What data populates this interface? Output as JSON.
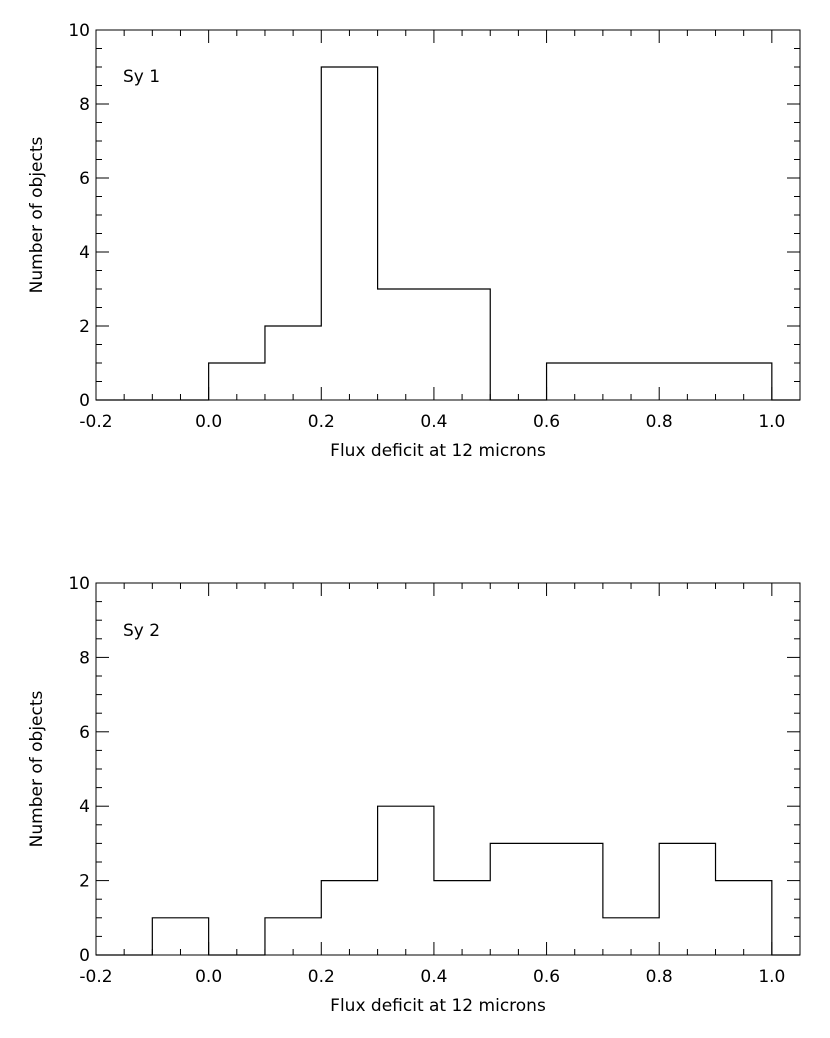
{
  "chart_data": [
    {
      "type": "bar",
      "annotation": "Sy 1",
      "xlabel": "Flux deficit at 12 microns",
      "ylabel": "Number of objects",
      "xlim": [
        -0.2,
        1.05
      ],
      "ylim": [
        0,
        10
      ],
      "xticks": [
        "-0.2",
        "0.0",
        "0.2",
        "0.4",
        "0.6",
        "0.8",
        "1.0"
      ],
      "yticks": [
        "0",
        "2",
        "4",
        "6",
        "8",
        "10"
      ],
      "bin_edges": [
        -0.2,
        -0.1,
        0.0,
        0.1,
        0.2,
        0.3,
        0.4,
        0.5,
        0.6,
        0.7,
        0.8,
        0.9,
        1.0
      ],
      "values": [
        0,
        0,
        1,
        2,
        9,
        3,
        3,
        0,
        1,
        1,
        1,
        1
      ],
      "grid": false
    },
    {
      "type": "bar",
      "annotation": "Sy 2",
      "xlabel": "Flux deficit at 12 microns",
      "ylabel": "Number of objects",
      "xlim": [
        -0.2,
        1.05
      ],
      "ylim": [
        0,
        10
      ],
      "xticks": [
        "-0.2",
        "0.0",
        "0.2",
        "0.4",
        "0.6",
        "0.8",
        "1.0"
      ],
      "yticks": [
        "0",
        "2",
        "4",
        "6",
        "8",
        "10"
      ],
      "bin_edges": [
        -0.2,
        -0.1,
        0.0,
        0.1,
        0.2,
        0.3,
        0.4,
        0.5,
        0.6,
        0.7,
        0.8,
        0.9,
        1.0
      ],
      "values": [
        0,
        1,
        0,
        1,
        2,
        4,
        2,
        3,
        3,
        1,
        3,
        2
      ],
      "grid": false
    }
  ]
}
